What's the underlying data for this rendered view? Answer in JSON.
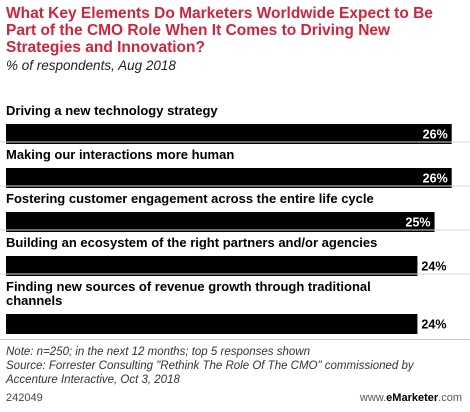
{
  "chart_data": {
    "type": "bar",
    "orientation": "horizontal",
    "title": "What Key Elements Do Marketers Worldwide Expect to Be Part of the CMO Role When It Comes to Driving New Strategies and Innovation?",
    "subtitle": "% of respondents, Aug 2018",
    "categories": [
      "Driving a new technology strategy",
      "Making our interactions more human",
      "Fostering customer engagement across the entire life cycle",
      "Building an ecosystem of the right partners and/or agencies",
      "Finding new sources of revenue growth through traditional channels"
    ],
    "category_lines": [
      [
        "Driving a new technology strategy"
      ],
      [
        "Making our interactions more human"
      ],
      [
        "Fostering customer engagement across the entire life cycle"
      ],
      [
        "Building an ecosystem of the right partners and/or agencies"
      ],
      [
        "Finding new sources of revenue growth through traditional",
        "channels"
      ]
    ],
    "values": [
      26,
      26,
      25,
      24,
      24
    ],
    "value_labels": [
      "26%",
      "26%",
      "25%",
      "24%",
      "24%"
    ],
    "value_label_position": [
      "inside",
      "inside",
      "inside",
      "outside",
      "outside"
    ],
    "xlim": [
      0,
      26.6
    ],
    "bar_color": "#000000",
    "inside_label_color": "#ffffff",
    "title_color": "#d0243c"
  },
  "note": "Note: n=250; in the next 12 months; top 5 responses shown",
  "source": "Source: Forrester Consulting \"Rethink The Role Of The CMO\" commissioned by Accenture Interactive, Oct 3, 2018",
  "chart_id": "242049",
  "brand": {
    "prefix": "www.",
    "name": "eMarketer",
    "suffix": ".com"
  }
}
